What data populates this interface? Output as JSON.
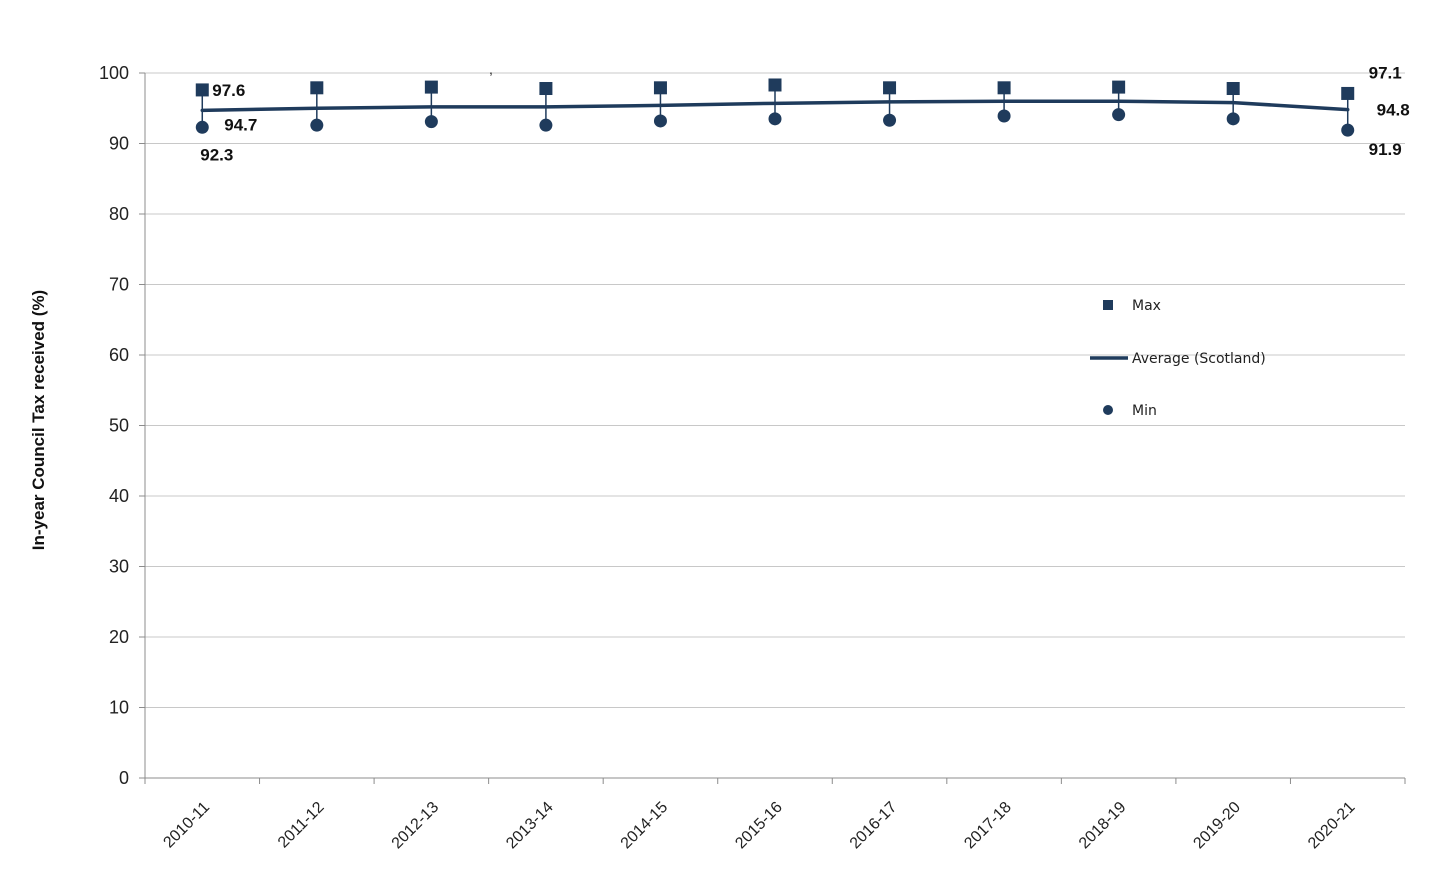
{
  "chart_data": {
    "type": "line",
    "title": "",
    "xlabel": "",
    "ylabel": "In-year Council Tax received (%)",
    "ylim": [
      0,
      100
    ],
    "yticks": [
      0,
      10,
      20,
      30,
      40,
      50,
      60,
      70,
      80,
      90,
      100
    ],
    "grid": true,
    "legend_position": "right",
    "categories": [
      "2010-11",
      "2011-12",
      "2012-13",
      "2013-14",
      "2014-15",
      "2015-16",
      "2016-17",
      "2017-18",
      "2018-19",
      "2019-20",
      "2020-21"
    ],
    "series": [
      {
        "name": "Max",
        "marker": "square",
        "values": [
          97.6,
          97.9,
          98.0,
          97.8,
          97.9,
          98.3,
          97.9,
          97.9,
          98.0,
          97.8,
          97.1
        ],
        "labels": [
          "97.6",
          null,
          null,
          null,
          null,
          null,
          null,
          null,
          null,
          null,
          "97.1"
        ]
      },
      {
        "name": "Average (Scotland)",
        "marker": "line",
        "values": [
          94.7,
          95.0,
          95.2,
          95.2,
          95.4,
          95.7,
          95.9,
          96.0,
          96.0,
          95.8,
          94.8
        ],
        "labels": [
          "94.7",
          null,
          null,
          null,
          null,
          null,
          null,
          null,
          null,
          null,
          "94.8"
        ]
      },
      {
        "name": "Min",
        "marker": "circle",
        "values": [
          92.3,
          92.6,
          93.1,
          92.6,
          93.2,
          93.5,
          93.3,
          93.9,
          94.1,
          93.5,
          91.9
        ],
        "labels": [
          "92.3",
          null,
          null,
          null,
          null,
          null,
          null,
          null,
          null,
          null,
          "91.9"
        ]
      }
    ],
    "stray_mark": ","
  },
  "colors": {
    "series": "#1f3b5c",
    "grid": "#c8c8c8",
    "axis": "#8c8c8c",
    "text": "#111111"
  }
}
